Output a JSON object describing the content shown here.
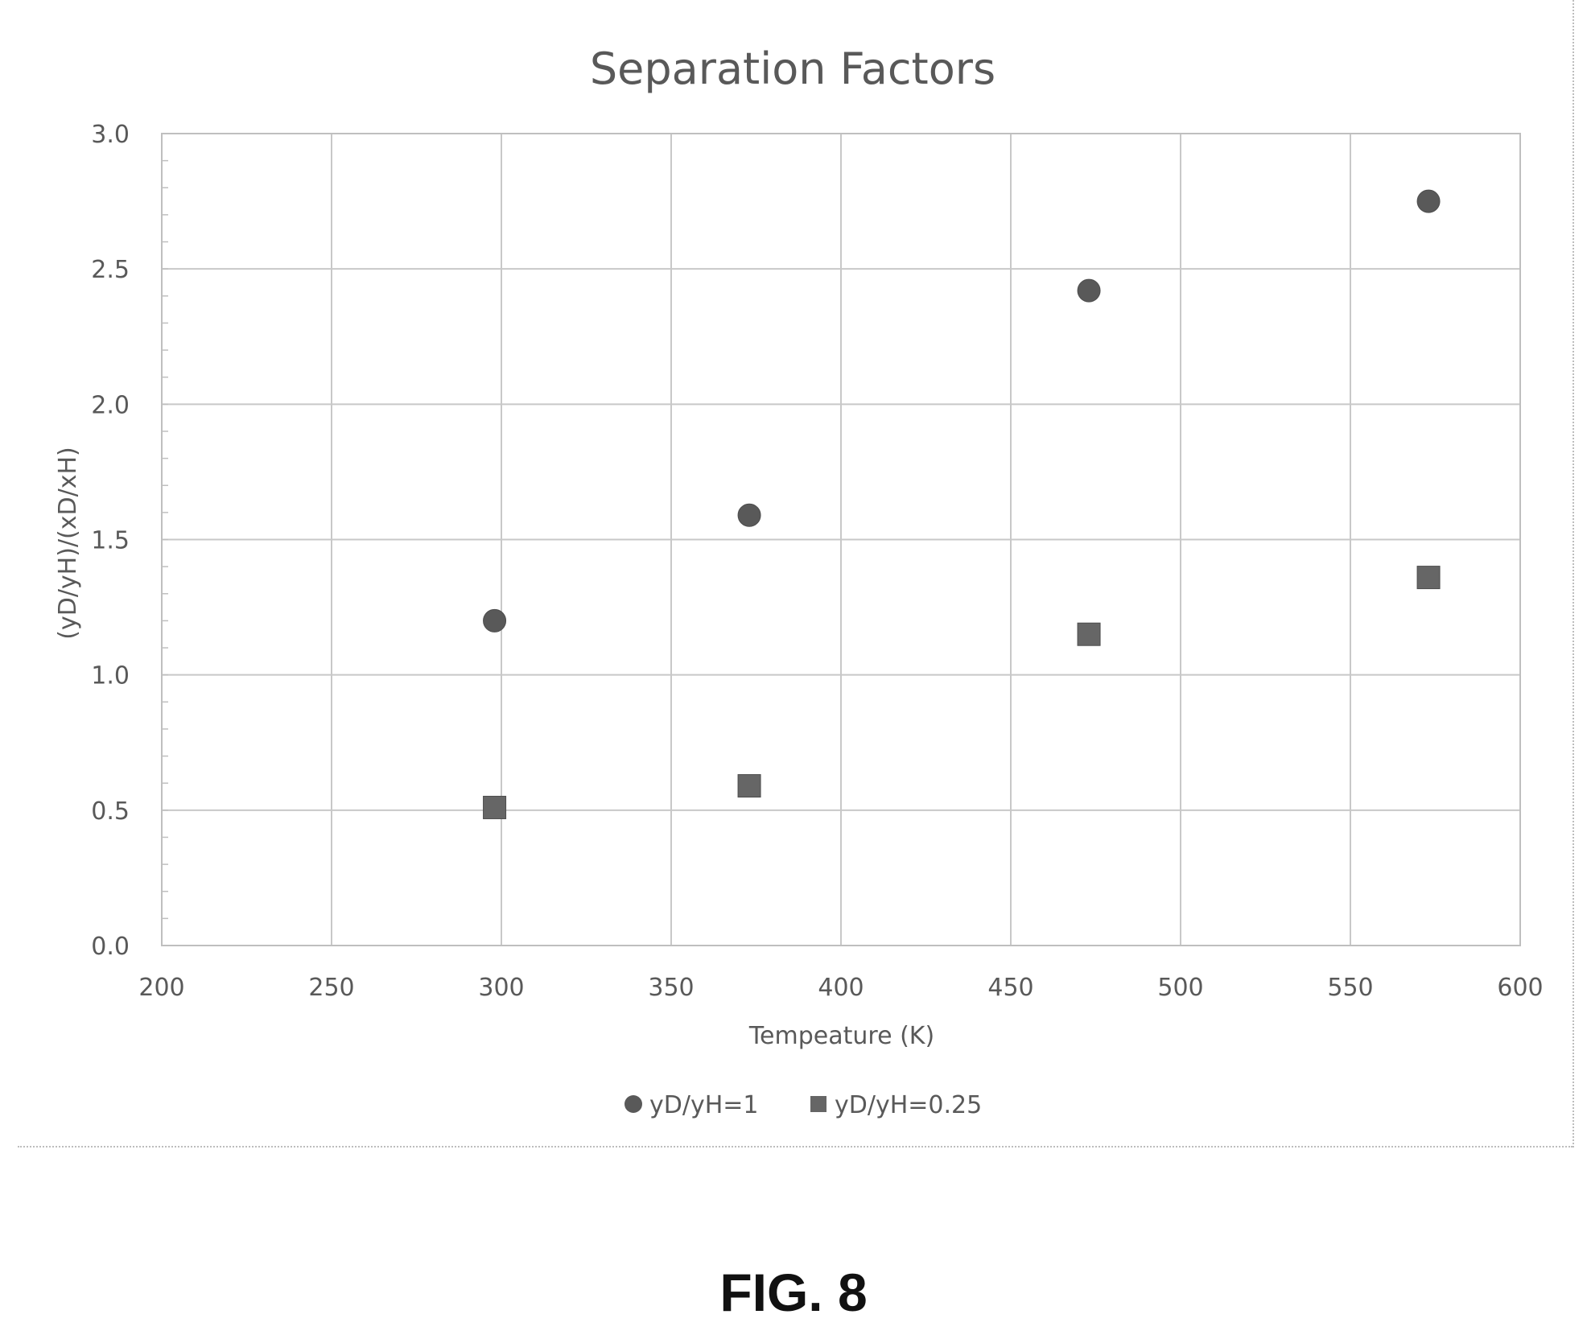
{
  "chart_data": {
    "type": "scatter",
    "title": "Separation Factors",
    "xlabel": "Tempeature (K)",
    "ylabel": "(yD/yH)/(xD/xH)",
    "xlim": [
      200,
      600
    ],
    "ylim": [
      0.0,
      3.0
    ],
    "x_ticks": [
      "200",
      "250",
      "300",
      "350",
      "400",
      "450",
      "500",
      "550",
      "600"
    ],
    "y_ticks": [
      "0.0",
      "0.5",
      "1.0",
      "1.5",
      "2.0",
      "2.5",
      "3.0"
    ],
    "grid": true,
    "legend_position": "bottom",
    "series": [
      {
        "name": "yD/yH=1",
        "marker": "circle",
        "color": "#595959",
        "x": [
          298,
          373,
          473,
          573
        ],
        "y": [
          1.2,
          1.59,
          2.42,
          2.75
        ]
      },
      {
        "name": "yD/yH=0.25",
        "marker": "square",
        "color": "#666666",
        "x": [
          298,
          373,
          473,
          573
        ],
        "y": [
          0.51,
          0.59,
          1.15,
          1.36
        ]
      }
    ]
  },
  "figure_label": "FIG. 8"
}
